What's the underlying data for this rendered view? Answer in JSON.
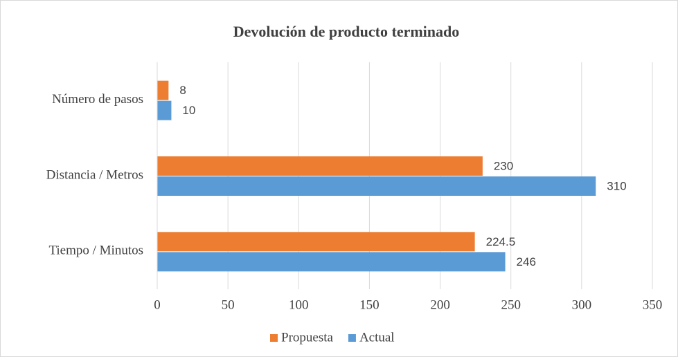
{
  "chart_data": {
    "type": "bar",
    "orientation": "horizontal",
    "title": "Devolución de producto terminado",
    "categories": [
      "Número de pasos",
      "Distancia / Metros",
      "Tiempo / Minutos"
    ],
    "series": [
      {
        "name": "Propuesta",
        "color": "#ED7D31",
        "values": [
          8,
          230,
          224.5
        ]
      },
      {
        "name": "Actual",
        "color": "#5B9BD5",
        "values": [
          10,
          310,
          246
        ]
      }
    ],
    "xlim": [
      0,
      350
    ],
    "xticks": [
      0,
      50,
      100,
      150,
      200,
      250,
      300,
      350
    ],
    "grid": true,
    "legend": "bottom"
  }
}
